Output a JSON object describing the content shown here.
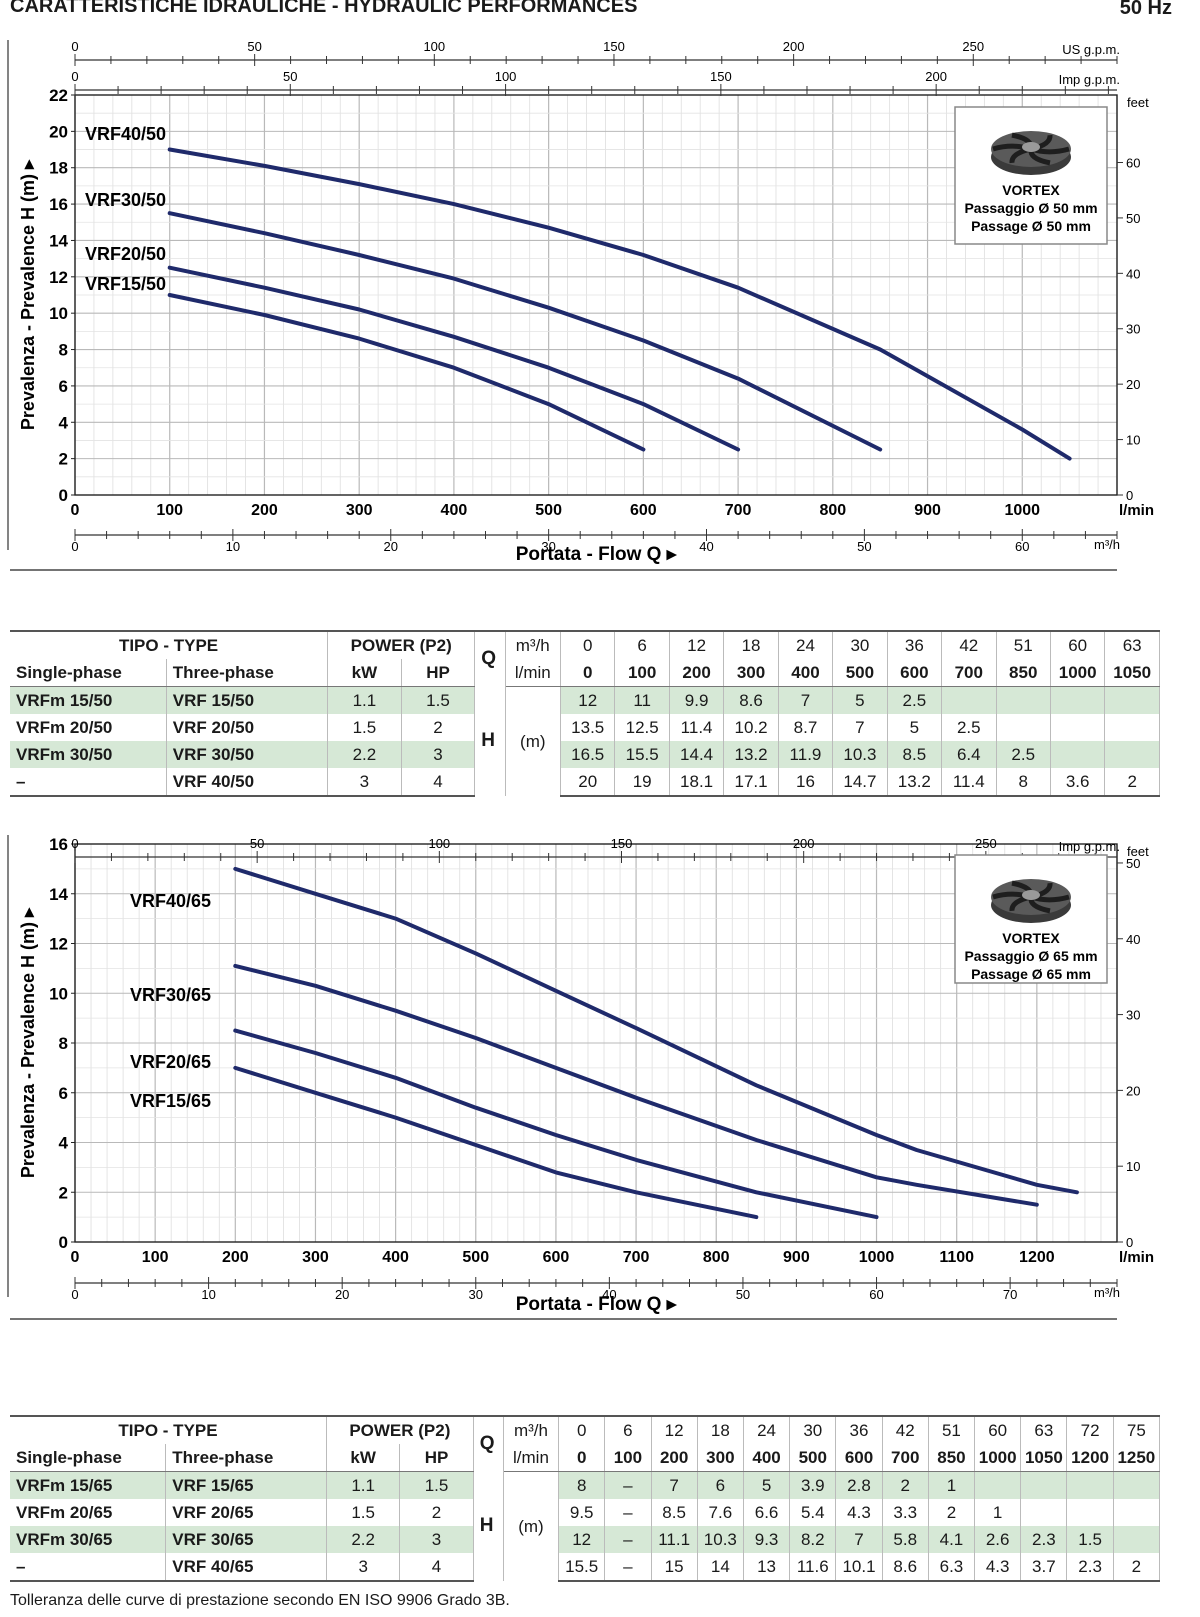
{
  "header": {
    "title": "CARATTERISTICHE IDRAULICHE - HYDRAULIC PERFORMANCES",
    "frequency": "50 Hz"
  },
  "charts": [
    {
      "type": "line",
      "x_label": "Portata - Flow  Q",
      "y_label": "Prevalenza - Prevalence H (m)",
      "x_unit": "l/min",
      "xlim": [
        0,
        1100
      ],
      "ylim": [
        0,
        22
      ],
      "y_ticks": [
        0,
        2,
        4,
        6,
        8,
        10,
        12,
        14,
        16,
        18,
        20,
        22
      ],
      "x_ticks": [
        0,
        100,
        200,
        300,
        400,
        500,
        600,
        700,
        800,
        900,
        1000
      ],
      "us_gpm": {
        "unit": "US g.p.m.",
        "ticks": [
          0,
          50,
          100,
          150,
          200,
          250
        ]
      },
      "imp_gpm": {
        "unit": "Imp g.p.m.",
        "ticks": [
          0,
          50,
          100,
          150,
          200
        ]
      },
      "m3h": {
        "unit": "m³/h",
        "ticks": [
          0,
          10,
          20,
          30,
          40,
          50,
          60
        ]
      },
      "feet": {
        "unit": "feet",
        "ticks": [
          0,
          10,
          20,
          30,
          40,
          50,
          60
        ]
      },
      "legend_box": {
        "lines": [
          "VORTEX",
          "Passaggio Ø 50 mm",
          "Passage Ø 50 mm"
        ]
      },
      "series": [
        {
          "name": "VRF40/50",
          "x": [
            100,
            200,
            300,
            400,
            500,
            600,
            700,
            850,
            1000,
            1050
          ],
          "y": [
            19,
            18.1,
            17.1,
            16,
            14.7,
            13.2,
            11.4,
            8,
            3.6,
            2
          ]
        },
        {
          "name": "VRF30/50",
          "x": [
            100,
            200,
            300,
            400,
            500,
            600,
            700,
            850
          ],
          "y": [
            15.5,
            14.4,
            13.2,
            11.9,
            10.3,
            8.5,
            6.4,
            2.5
          ]
        },
        {
          "name": "VRF20/50",
          "x": [
            100,
            200,
            300,
            400,
            500,
            600,
            700
          ],
          "y": [
            12.5,
            11.4,
            10.2,
            8.7,
            7,
            5,
            2.5
          ]
        },
        {
          "name": "VRF15/50",
          "x": [
            100,
            200,
            300,
            400,
            500,
            600
          ],
          "y": [
            11,
            9.9,
            8.6,
            7,
            5,
            2.5
          ]
        }
      ]
    },
    {
      "type": "line",
      "x_label": "Portata - Flow  Q",
      "y_label": "Prevalenza - Prevalence H (m)",
      "x_unit": "l/min",
      "xlim": [
        0,
        1300
      ],
      "ylim": [
        0,
        16
      ],
      "y_ticks": [
        0,
        2,
        4,
        6,
        8,
        10,
        12,
        14,
        16
      ],
      "x_ticks": [
        0,
        100,
        200,
        300,
        400,
        500,
        600,
        700,
        800,
        900,
        1000,
        1100,
        1200
      ],
      "us_gpm": {
        "unit": "US g.p.m.",
        "ticks": [
          0,
          50,
          100,
          150,
          200,
          250,
          300
        ]
      },
      "imp_gpm": {
        "unit": "Imp g.p.m.",
        "ticks": [
          0,
          50,
          100,
          150,
          200,
          250
        ]
      },
      "m3h": {
        "unit": "m³/h",
        "ticks": [
          0,
          10,
          20,
          30,
          40,
          50,
          60,
          70
        ]
      },
      "feet": {
        "unit": "feet",
        "ticks": [
          0,
          10,
          20,
          30,
          40,
          50
        ]
      },
      "legend_box": {
        "lines": [
          "VORTEX",
          "Passaggio Ø 65 mm",
          "Passage Ø 65 mm"
        ]
      },
      "series": [
        {
          "name": "VRF40/65",
          "x": [
            200,
            300,
            400,
            500,
            600,
            700,
            850,
            1000,
            1050,
            1200,
            1250
          ],
          "y": [
            15,
            14,
            13,
            11.6,
            10.1,
            8.6,
            6.3,
            4.3,
            3.7,
            2.3,
            2
          ]
        },
        {
          "name": "VRF30/65",
          "x": [
            200,
            300,
            400,
            500,
            600,
            700,
            850,
            1000,
            1050,
            1200
          ],
          "y": [
            11.1,
            10.3,
            9.3,
            8.2,
            7,
            5.8,
            4.1,
            2.6,
            2.3,
            1.5
          ]
        },
        {
          "name": "VRF20/65",
          "x": [
            200,
            300,
            400,
            500,
            600,
            700,
            850,
            1000
          ],
          "y": [
            8.5,
            7.6,
            6.6,
            5.4,
            4.3,
            3.3,
            2,
            1
          ]
        },
        {
          "name": "VRF15/65",
          "x": [
            200,
            300,
            400,
            500,
            600,
            700,
            850
          ],
          "y": [
            7,
            6,
            5,
            3.9,
            2.8,
            2,
            1
          ]
        }
      ]
    }
  ],
  "tables": [
    {
      "type_header": "TIPO - TYPE",
      "single_label": "Single-phase",
      "three_label": "Three-phase",
      "power_header": "POWER (P2)",
      "kw_label": "kW",
      "hp_label": "HP",
      "q_label": "Q",
      "m3h_label": "m³/h",
      "lmin_label": "l/min",
      "h_label": "H",
      "m_label": "(m)",
      "m3h": [
        "0",
        "6",
        "12",
        "18",
        "24",
        "30",
        "36",
        "42",
        "51",
        "60",
        "63"
      ],
      "lmin": [
        "0",
        "100",
        "200",
        "300",
        "400",
        "500",
        "600",
        "700",
        "850",
        "1000",
        "1050"
      ],
      "rows": [
        {
          "single": "VRFm 15/50",
          "three": "VRF 15/50",
          "kw": "1.1",
          "hp": "1.5",
          "h": [
            "12",
            "11",
            "9.9",
            "8.6",
            "7",
            "5",
            "2.5",
            "",
            "",
            "",
            ""
          ]
        },
        {
          "single": "VRFm 20/50",
          "three": "VRF 20/50",
          "kw": "1.5",
          "hp": "2",
          "h": [
            "13.5",
            "12.5",
            "11.4",
            "10.2",
            "8.7",
            "7",
            "5",
            "2.5",
            "",
            "",
            ""
          ]
        },
        {
          "single": "VRFm 30/50",
          "three": "VRF 30/50",
          "kw": "2.2",
          "hp": "3",
          "h": [
            "16.5",
            "15.5",
            "14.4",
            "13.2",
            "11.9",
            "10.3",
            "8.5",
            "6.4",
            "2.5",
            "",
            ""
          ]
        },
        {
          "single": "–",
          "three": "VRF 40/50",
          "kw": "3",
          "hp": "4",
          "h": [
            "20",
            "19",
            "18.1",
            "17.1",
            "16",
            "14.7",
            "13.2",
            "11.4",
            "8",
            "3.6",
            "2"
          ]
        }
      ]
    },
    {
      "type_header": "TIPO - TYPE",
      "single_label": "Single-phase",
      "three_label": "Three-phase",
      "power_header": "POWER (P2)",
      "kw_label": "kW",
      "hp_label": "HP",
      "q_label": "Q",
      "m3h_label": "m³/h",
      "lmin_label": "l/min",
      "h_label": "H",
      "m_label": "(m)",
      "m3h": [
        "0",
        "6",
        "12",
        "18",
        "24",
        "30",
        "36",
        "42",
        "51",
        "60",
        "63",
        "72",
        "75"
      ],
      "lmin": [
        "0",
        "100",
        "200",
        "300",
        "400",
        "500",
        "600",
        "700",
        "850",
        "1000",
        "1050",
        "1200",
        "1250"
      ],
      "rows": [
        {
          "single": "VRFm 15/65",
          "three": "VRF 15/65",
          "kw": "1.1",
          "hp": "1.5",
          "h": [
            "8",
            "–",
            "7",
            "6",
            "5",
            "3.9",
            "2.8",
            "2",
            "1",
            "",
            "",
            "",
            ""
          ]
        },
        {
          "single": "VRFm 20/65",
          "three": "VRF 20/65",
          "kw": "1.5",
          "hp": "2",
          "h": [
            "9.5",
            "–",
            "8.5",
            "7.6",
            "6.6",
            "5.4",
            "4.3",
            "3.3",
            "2",
            "1",
            "",
            "",
            ""
          ]
        },
        {
          "single": "VRFm 30/65",
          "three": "VRF 30/65",
          "kw": "2.2",
          "hp": "3",
          "h": [
            "12",
            "–",
            "11.1",
            "10.3",
            "9.3",
            "8.2",
            "7",
            "5.8",
            "4.1",
            "2.6",
            "2.3",
            "1.5",
            ""
          ]
        },
        {
          "single": "–",
          "three": "VRF 40/65",
          "kw": "3",
          "hp": "4",
          "h": [
            "15.5",
            "–",
            "15",
            "14",
            "13",
            "11.6",
            "10.1",
            "8.6",
            "6.3",
            "4.3",
            "3.7",
            "2.3",
            "2"
          ]
        }
      ]
    }
  ],
  "footer": "Tolleranza delle curve di prestazione secondo EN ISO 9906 Grado 3B.",
  "colors": {
    "curve": "#1f2a6b",
    "row_highlight": "#d6e8d6",
    "grid": "#cfcfcf"
  }
}
